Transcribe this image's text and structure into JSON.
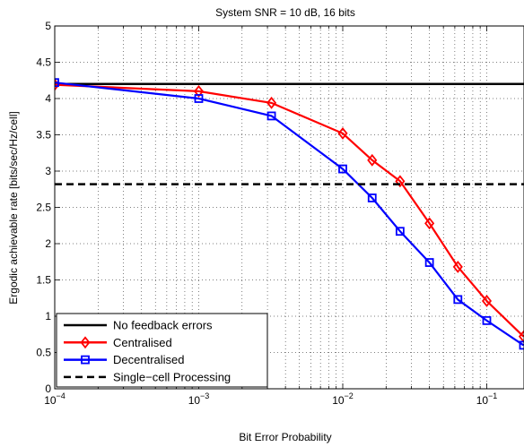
{
  "chart_data": {
    "type": "line",
    "title": "System SNR = 10 dB, 16 bits",
    "xlabel": "Bit Error Probability",
    "ylabel": "Ergodic achievable rate [bits/sec/Hz/cell]",
    "x_scale": "log",
    "xlim": [
      0.0001,
      0.18
    ],
    "ylim": [
      0,
      5
    ],
    "grid": true,
    "x_ticks": [
      {
        "value": 0.0001,
        "base": "10",
        "exp": "−4"
      },
      {
        "value": 0.001,
        "base": "10",
        "exp": "−3"
      },
      {
        "value": 0.01,
        "base": "10",
        "exp": "−2"
      },
      {
        "value": 0.1,
        "base": "10",
        "exp": "−1"
      }
    ],
    "y_ticks": [
      "0",
      "0.5",
      "1",
      "1.5",
      "2",
      "2.5",
      "3",
      "3.5",
      "4",
      "4.5",
      "5"
    ],
    "legend_position": "bottom-left",
    "series": [
      {
        "name": "No feedback errors",
        "color": "#000000",
        "style": "solid",
        "marker": "none",
        "x": [
          0.0001,
          0.18
        ],
        "y": [
          4.2,
          4.2
        ]
      },
      {
        "name": "Centralised",
        "color": "#ff0000",
        "style": "solid",
        "marker": "diamond",
        "x": [
          0.0001,
          0.001,
          0.0032,
          0.01,
          0.016,
          0.025,
          0.04,
          0.063,
          0.1,
          0.18
        ],
        "y": [
          4.19,
          4.1,
          3.94,
          3.52,
          3.15,
          2.86,
          2.28,
          1.68,
          1.21,
          0.72
        ]
      },
      {
        "name": "Decentralised",
        "color": "#0000ff",
        "style": "solid",
        "marker": "square",
        "x": [
          0.0001,
          0.001,
          0.0032,
          0.01,
          0.016,
          0.025,
          0.04,
          0.063,
          0.1,
          0.18
        ],
        "y": [
          4.22,
          4.0,
          3.76,
          3.03,
          2.63,
          2.17,
          1.74,
          1.23,
          0.94,
          0.6
        ]
      },
      {
        "name": "Single−cell Processing",
        "color": "#000000",
        "style": "dashed",
        "marker": "none",
        "x": [
          0.0001,
          0.18
        ],
        "y": [
          2.82,
          2.82
        ]
      }
    ]
  }
}
